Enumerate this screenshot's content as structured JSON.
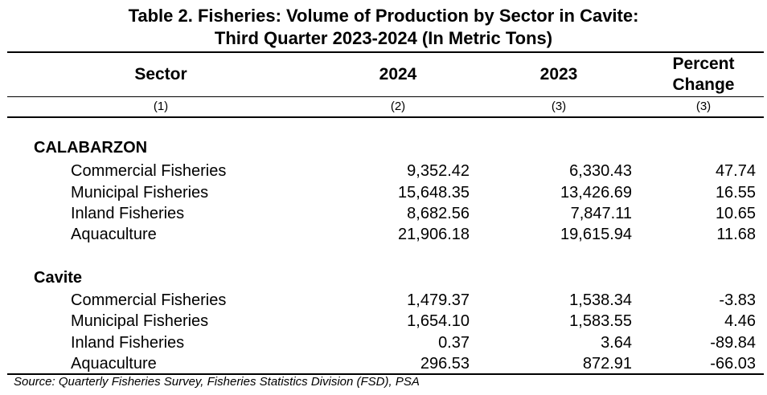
{
  "title_line1": "Table 2. Fisheries: Volume of Production by Sector in Cavite:",
  "title_line2": "Third Quarter 2023-2024 (In Metric Tons)",
  "headers": {
    "sector": "Sector",
    "y2024": "2024",
    "y2023": "2023",
    "pct_line1": "Percent",
    "pct_line2": "Change"
  },
  "col_numbers": [
    "(1)",
    "(2)",
    "(3)",
    "(3)"
  ],
  "groups": [
    {
      "name": "CALABARZON",
      "rows": [
        {
          "sector": "Commercial Fisheries",
          "y2024": "9,352.42",
          "y2023": "6,330.43",
          "pct": "47.74"
        },
        {
          "sector": "Municipal Fisheries",
          "y2024": "15,648.35",
          "y2023": "13,426.69",
          "pct": "16.55"
        },
        {
          "sector": "Inland Fisheries",
          "y2024": "8,682.56",
          "y2023": "7,847.11",
          "pct": "10.65"
        },
        {
          "sector": "Aquaculture",
          "y2024": "21,906.18",
          "y2023": "19,615.94",
          "pct": "11.68"
        }
      ]
    },
    {
      "name": "Cavite",
      "rows": [
        {
          "sector": "Commercial Fisheries",
          "y2024": "1,479.37",
          "y2023": "1,538.34",
          "pct": "-3.83"
        },
        {
          "sector": "Municipal Fisheries",
          "y2024": "1,654.10",
          "y2023": "1,583.55",
          "pct": "4.46"
        },
        {
          "sector": "Inland Fisheries",
          "y2024": "0.37",
          "y2023": "3.64",
          "pct": "-89.84"
        },
        {
          "sector": "Aquaculture",
          "y2024": "296.53",
          "y2023": "872.91",
          "pct": "-66.03"
        }
      ]
    }
  ],
  "source": "Source: Quarterly Fisheries Survey, Fisheries Statistics Division (FSD), PSA"
}
